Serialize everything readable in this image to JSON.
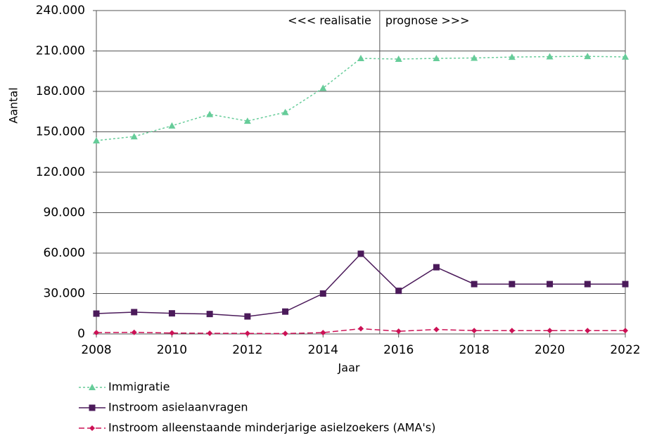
{
  "chart_data": {
    "type": "line",
    "x_label": "Jaar",
    "y_label": "Aantal",
    "annotations": [
      {
        "text": "<<< realisatie",
        "x": 2015.5,
        "side": "left"
      },
      {
        "text": "prognose >>>",
        "x": 2015.5,
        "side": "right"
      }
    ],
    "x": [
      2008,
      2009,
      2010,
      2011,
      2012,
      2013,
      2014,
      2015,
      2016,
      2017,
      2018,
      2019,
      2020,
      2021,
      2022
    ],
    "series": [
      {
        "name": "Immigratie",
        "color": "#66cc99",
        "marker": "triangle",
        "dash": "3,3",
        "values": [
          143500,
          146500,
          154500,
          163000,
          158000,
          164500,
          182500,
          204500,
          204000,
          204500,
          204800,
          205500,
          205800,
          206000,
          205600
        ]
      },
      {
        "name": "Instroom asielaanvragen",
        "color": "#4b1a5a",
        "marker": "square",
        "dash": "",
        "values": [
          15100,
          16200,
          15300,
          14800,
          13000,
          16600,
          30000,
          59500,
          32000,
          49500,
          37000,
          37000,
          37000,
          37000,
          37000
        ]
      },
      {
        "name": "Instroom alleenstaande minderjarige asielzoekers (AMA's)",
        "color": "#cc1155",
        "marker": "diamond",
        "dash": "8,4",
        "values": [
          1000,
          1200,
          700,
          500,
          400,
          300,
          1000,
          3900,
          2000,
          3300,
          2500,
          2500,
          2500,
          2500,
          2500
        ]
      }
    ],
    "xlim": [
      2008,
      2022
    ],
    "xticks": [
      2008,
      2010,
      2012,
      2014,
      2016,
      2018,
      2020,
      2022
    ],
    "ylim": [
      0,
      240000
    ],
    "yticks": [
      0,
      {
        "value": 30000,
        "label": "30.000"
      },
      {
        "value": 60000,
        "label": "60.000"
      },
      {
        "value": 90000,
        "label": "90.000"
      },
      {
        "value": 120000,
        "label": "120.000"
      },
      {
        "value": 150000,
        "label": "150.000"
      },
      {
        "value": 180000,
        "label": "180.000"
      },
      {
        "value": 210000,
        "label": "210.000"
      },
      {
        "value": 240000,
        "label": "240.000"
      }
    ],
    "grid": true,
    "legend": "bottom"
  }
}
